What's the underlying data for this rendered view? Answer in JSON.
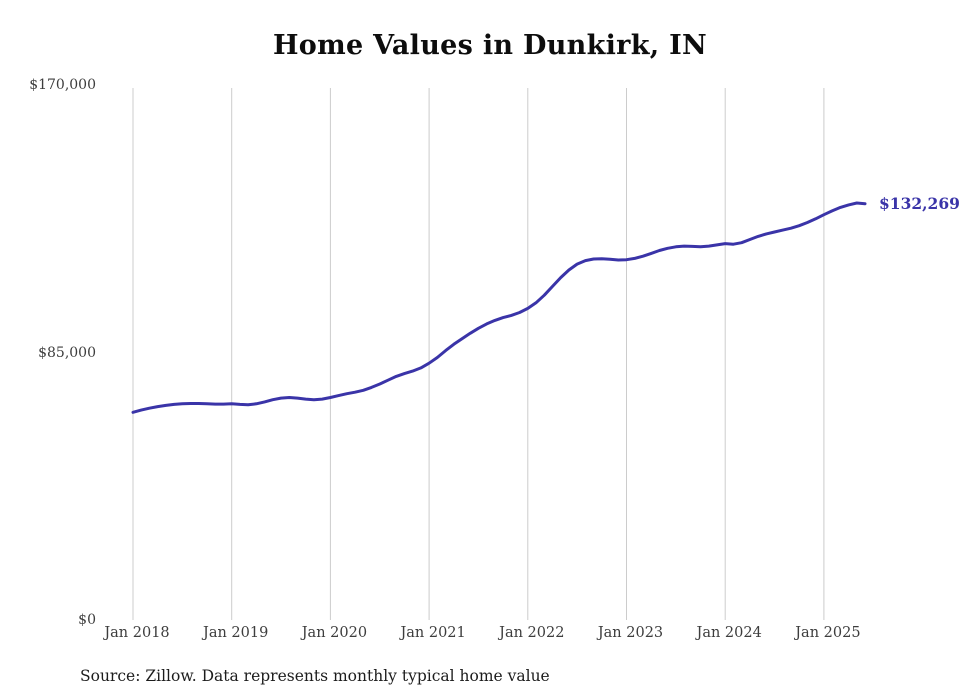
{
  "title": "Home Values in Dunkirk, IN",
  "source": "Source: Zillow. Data represents monthly typical home value",
  "end_label": "$132,269",
  "colors": {
    "line": "#3a34a8",
    "grid": "#cccccc",
    "axis_text": "#3d3d3d",
    "title_text": "#0d0d0d"
  },
  "chart_data": {
    "type": "line",
    "title": "Home Values in Dunkirk, IN",
    "xlabel": "",
    "ylabel": "",
    "ylim": [
      0,
      170000
    ],
    "grid": "vertical-only",
    "legend": "none",
    "yticks": [
      {
        "value": 0,
        "label": "$0"
      },
      {
        "value": 85000,
        "label": "$85,000"
      },
      {
        "value": 170000,
        "label": "$170,000"
      }
    ],
    "xticks": [
      "Jan 2018",
      "Jan 2019",
      "Jan 2020",
      "Jan 2021",
      "Jan 2022",
      "Jan 2023",
      "Jan 2024",
      "Jan 2025"
    ],
    "series": [
      {
        "name": "Monthly typical home value",
        "start": "Jan 2018",
        "frequency": "monthly",
        "values": [
          66000,
          66700,
          67300,
          67800,
          68200,
          68500,
          68700,
          68800,
          68800,
          68700,
          68600,
          68600,
          68700,
          68500,
          68400,
          68700,
          69300,
          70000,
          70500,
          70700,
          70500,
          70200,
          70000,
          70200,
          70700,
          71300,
          71900,
          72400,
          73000,
          73900,
          75000,
          76200,
          77400,
          78300,
          79100,
          80100,
          81600,
          83400,
          85600,
          87600,
          89400,
          91100,
          92700,
          94100,
          95200,
          96100,
          96800,
          97700,
          99000,
          100800,
          103200,
          106000,
          108800,
          111200,
          113100,
          114200,
          114700,
          114800,
          114600,
          114400,
          114500,
          114900,
          115600,
          116500,
          117400,
          118100,
          118600,
          118800,
          118700,
          118600,
          118800,
          119200,
          119600,
          119400,
          119900,
          120900,
          121900,
          122700,
          123300,
          123900,
          124500,
          125300,
          126300,
          127500,
          128800,
          130000,
          131100,
          131900,
          132500,
          132269
        ]
      }
    ],
    "annotations": [
      {
        "text": "$132,269",
        "position": "line-end"
      }
    ]
  }
}
